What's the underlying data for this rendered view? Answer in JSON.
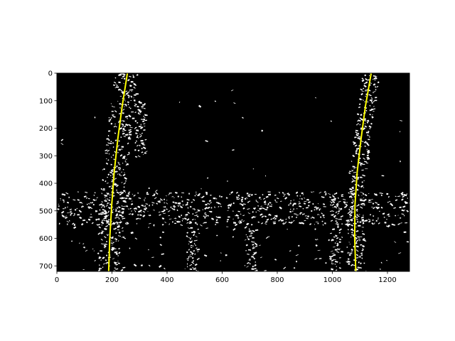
{
  "chart_data": {
    "type": "line",
    "title": "",
    "xlabel": "",
    "ylabel": "",
    "xlim": [
      0,
      1280
    ],
    "ylim": [
      720,
      0
    ],
    "y_axis_inverted": true,
    "grid": false,
    "background": "binary lane-pixel image (white pixels on black)",
    "x_ticks": [
      0,
      200,
      400,
      600,
      800,
      1000,
      1200
    ],
    "y_ticks": [
      0,
      100,
      200,
      300,
      400,
      500,
      600,
      700
    ],
    "series": [
      {
        "color": "#ffff00",
        "x": [
          188,
          192,
          199,
          208,
          221,
          237,
          256
        ],
        "y": [
          720,
          600,
          480,
          360,
          240,
          120,
          0
        ]
      },
      {
        "color": "#ffff00",
        "x": [
          1085,
          1081,
          1082,
          1090,
          1104,
          1120,
          1141
        ],
        "y": [
          720,
          600,
          480,
          360,
          240,
          120,
          0
        ]
      }
    ]
  },
  "colors": {
    "image_background": "#000000",
    "lane_pixels": "#ffffff",
    "fit_line": "#ffff00"
  }
}
